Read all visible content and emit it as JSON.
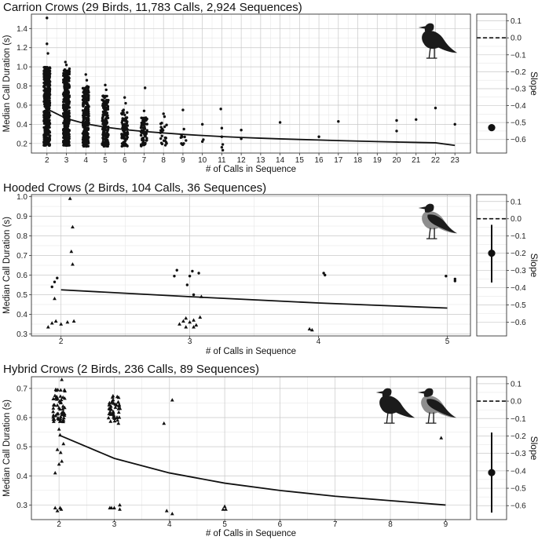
{
  "chart_data": [
    {
      "type": "scatter",
      "title": "Carrion Crows (29 Birds, 11,783 Calls, 2,924 Sequences)",
      "xlabel": "# of Calls in Sequence",
      "ylabel": "Median Call Duration (s)",
      "xlim": [
        1.2,
        23.8
      ],
      "ylim": [
        0.1,
        1.55
      ],
      "xticks": [
        2,
        3,
        4,
        5,
        6,
        7,
        8,
        9,
        10,
        11,
        12,
        13,
        14,
        15,
        16,
        17,
        18,
        19,
        20,
        21,
        22,
        23
      ],
      "yticks": [
        0.2,
        0.4,
        0.6,
        0.8,
        1.0,
        1.2,
        1.4
      ],
      "ytick_labels": [
        "0.2",
        "0.4",
        "0.6",
        "0.8",
        "1.0",
        "1.2",
        "1.4"
      ],
      "series": [
        {
          "marker": "circle",
          "dense_clusters": [
            {
              "x": 2,
              "ymin": 0.18,
              "ymax": 1.0,
              "n": 420
            },
            {
              "x": 3,
              "ymin": 0.18,
              "ymax": 0.98,
              "n": 380
            },
            {
              "x": 4,
              "ymin": 0.17,
              "ymax": 0.8,
              "n": 260
            },
            {
              "x": 5,
              "ymin": 0.17,
              "ymax": 0.7,
              "n": 170
            },
            {
              "x": 6,
              "ymin": 0.17,
              "ymax": 0.55,
              "n": 90
            },
            {
              "x": 7,
              "ymin": 0.17,
              "ymax": 0.48,
              "n": 70
            },
            {
              "x": 8,
              "ymin": 0.18,
              "ymax": 0.42,
              "n": 22
            },
            {
              "x": 9,
              "ymin": 0.18,
              "ymax": 0.32,
              "n": 9
            }
          ],
          "points": [
            [
              2.0,
              1.51
            ],
            [
              2.0,
              1.24
            ],
            [
              2.05,
              1.14
            ],
            [
              2.95,
              1.05
            ],
            [
              3.0,
              1.02
            ],
            [
              4.0,
              0.92
            ],
            [
              4.05,
              0.86
            ],
            [
              5.0,
              0.81
            ],
            [
              5.05,
              0.76
            ],
            [
              6.0,
              0.68
            ],
            [
              6.05,
              0.62
            ],
            [
              7.05,
              0.78
            ],
            [
              7.0,
              0.54
            ],
            [
              8.0,
              0.51
            ],
            [
              8.05,
              0.48
            ],
            [
              9.0,
              0.55
            ],
            [
              9.05,
              0.35
            ],
            [
              10.0,
              0.4
            ],
            [
              10.0,
              0.22
            ],
            [
              10.05,
              0.24
            ],
            [
              10.95,
              0.56
            ],
            [
              11.0,
              0.36
            ],
            [
              11.0,
              0.27
            ],
            [
              11.05,
              0.19
            ],
            [
              11.0,
              0.16
            ],
            [
              11.05,
              0.13
            ],
            [
              12.0,
              0.34
            ],
            [
              12.0,
              0.25
            ],
            [
              14.0,
              0.42
            ],
            [
              16.0,
              0.27
            ],
            [
              17.0,
              0.43
            ],
            [
              20.0,
              0.44
            ],
            [
              20.0,
              0.33
            ],
            [
              21.0,
              0.45
            ],
            [
              22.0,
              0.57
            ],
            [
              23.0,
              0.4
            ]
          ]
        }
      ],
      "trend": {
        "x": [
          2,
          3,
          4,
          5,
          6,
          7,
          8,
          9,
          10,
          11,
          12,
          13,
          14,
          15,
          16,
          17,
          18,
          19,
          20,
          21,
          22,
          23
        ],
        "y": [
          0.56,
          0.46,
          0.405,
          0.37,
          0.345,
          0.325,
          0.31,
          0.295,
          0.283,
          0.272,
          0.263,
          0.255,
          0.248,
          0.242,
          0.236,
          0.23,
          0.225,
          0.22,
          0.215,
          0.211,
          0.207,
          0.18
        ]
      },
      "slope": {
        "label": "Slope",
        "estimate": -0.53,
        "ci": [
          -0.54,
          -0.52
        ],
        "ylim": [
          -0.68,
          0.14
        ],
        "ticks": [
          0.1,
          0.0,
          -0.1,
          -0.2,
          -0.3,
          -0.4,
          -0.5,
          -0.6
        ],
        "tick_labels": [
          "0.1",
          "0.0",
          "−0.1",
          "−0.2",
          "−0.3",
          "−0.4",
          "−0.5",
          "−0.6"
        ],
        "reference": 0.0
      },
      "icons": [
        "carrion-crow-icon"
      ]
    },
    {
      "type": "scatter",
      "title": "Hooded Crows (2 Birds, 104 Calls, 36 Sequences)",
      "xlabel": "# of Calls in Sequence",
      "ylabel": "Median Call Duration (s)",
      "xlim": [
        1.77,
        5.18
      ],
      "ylim": [
        0.29,
        1.01
      ],
      "xticks": [
        2,
        3,
        4,
        5
      ],
      "yticks": [
        0.3,
        0.4,
        0.5,
        0.6,
        0.7,
        0.8,
        0.9,
        1.0
      ],
      "ytick_labels": [
        "0.3",
        "0.4",
        "0.5",
        "0.6",
        "0.7",
        "0.8",
        "0.9",
        "1.0"
      ],
      "series": [
        {
          "marker": "circle",
          "points": [
            [
              1.95,
              0.565
            ],
            [
              1.97,
              0.585
            ],
            [
              1.93,
              0.54
            ],
            [
              2.9,
              0.625
            ],
            [
              2.88,
              0.595
            ],
            [
              3.02,
              0.62
            ],
            [
              3.0,
              0.595
            ],
            [
              3.07,
              0.61
            ],
            [
              2.98,
              0.55
            ],
            [
              3.03,
              0.5
            ],
            [
              4.04,
              0.61
            ],
            [
              4.05,
              0.6
            ],
            [
              4.99,
              0.595
            ],
            [
              5.06,
              0.57
            ],
            [
              5.06,
              0.58
            ]
          ]
        },
        {
          "marker": "triangle",
          "points": [
            [
              2.07,
              0.99
            ],
            [
              2.09,
              0.845
            ],
            [
              2.08,
              0.72
            ],
            [
              2.09,
              0.655
            ],
            [
              1.95,
              0.48
            ],
            [
              1.9,
              0.335
            ],
            [
              1.93,
              0.355
            ],
            [
              1.96,
              0.365
            ],
            [
              2.0,
              0.35
            ],
            [
              2.05,
              0.36
            ],
            [
              2.1,
              0.365
            ],
            [
              2.92,
              0.35
            ],
            [
              2.95,
              0.365
            ],
            [
              2.97,
              0.335
            ],
            [
              3.0,
              0.36
            ],
            [
              3.03,
              0.37
            ],
            [
              2.97,
              0.38
            ],
            [
              3.03,
              0.335
            ],
            [
              3.08,
              0.385
            ],
            [
              3.09,
              0.49
            ],
            [
              3.05,
              0.345
            ],
            [
              3.93,
              0.325
            ],
            [
              3.95,
              0.32
            ]
          ]
        }
      ],
      "trend": {
        "x": [
          2,
          3,
          4,
          5
        ],
        "y": [
          0.525,
          0.49,
          0.458,
          0.432
        ]
      },
      "slope": {
        "label": "Slope",
        "estimate": -0.2,
        "ci": [
          -0.37,
          -0.035
        ],
        "ylim": [
          -0.68,
          0.14
        ],
        "ticks": [
          0.1,
          0.0,
          -0.1,
          -0.2,
          -0.3,
          -0.4,
          -0.5,
          -0.6
        ],
        "tick_labels": [
          "0.1",
          "0.0",
          "−0.1",
          "−0.2",
          "−0.3",
          "−0.4",
          "−0.5",
          "−0.6"
        ],
        "reference": 0.0
      },
      "icons": [
        "hooded-crow-icon"
      ]
    },
    {
      "type": "scatter",
      "title": "Hybrid Crows (2 Birds, 236 Calls, 89 Sequences)",
      "xlabel": "# of Calls in Sequence",
      "ylabel": "Median Call Duration (s)",
      "xlim": [
        1.5,
        9.45
      ],
      "ylim": [
        0.25,
        0.74
      ],
      "xticks": [
        2,
        3,
        4,
        5,
        6,
        7,
        8,
        9
      ],
      "yticks": [
        0.3,
        0.4,
        0.5,
        0.6,
        0.7
      ],
      "ytick_labels": [
        "0.3",
        "0.4",
        "0.5",
        "0.6",
        "0.7"
      ],
      "series": [
        {
          "marker": "triangle",
          "dense_clusters": [
            {
              "x": 2,
              "ymin": 0.585,
              "ymax": 0.7,
              "n": 55
            },
            {
              "x": 3,
              "ymin": 0.58,
              "ymax": 0.68,
              "n": 45
            }
          ],
          "points": [
            [
              2.05,
              0.73
            ],
            [
              2.0,
              0.56
            ],
            [
              2.02,
              0.54
            ],
            [
              2.08,
              0.51
            ],
            [
              1.97,
              0.49
            ],
            [
              2.03,
              0.48
            ],
            [
              2.05,
              0.45
            ],
            [
              2.0,
              0.44
            ],
            [
              1.93,
              0.41
            ],
            [
              1.93,
              0.29
            ],
            [
              1.97,
              0.28
            ],
            [
              2.02,
              0.29
            ],
            [
              2.04,
              0.285
            ],
            [
              2.92,
              0.29
            ],
            [
              2.95,
              0.29
            ],
            [
              3.0,
              0.29
            ],
            [
              3.1,
              0.3
            ],
            [
              3.1,
              0.285
            ],
            [
              3.9,
              0.58
            ],
            [
              4.05,
              0.66
            ],
            [
              3.95,
              0.28
            ],
            [
              4.05,
              0.27
            ],
            [
              4.97,
              0.285
            ],
            [
              5.02,
              0.285
            ],
            [
              5.0,
              0.295
            ],
            [
              8.92,
              0.53
            ]
          ]
        }
      ],
      "trend": {
        "x": [
          2,
          3,
          4,
          5,
          6,
          7,
          8,
          9
        ],
        "y": [
          0.54,
          0.46,
          0.41,
          0.375,
          0.35,
          0.33,
          0.315,
          0.3
        ]
      },
      "slope": {
        "label": "Slope",
        "estimate": -0.41,
        "ci": [
          -0.64,
          -0.18
        ],
        "ylim": [
          -0.68,
          0.14
        ],
        "ticks": [
          0.1,
          0.0,
          -0.1,
          -0.2,
          -0.3,
          -0.4,
          -0.5,
          -0.6
        ],
        "tick_labels": [
          "0.1",
          "0.0",
          "−0.1",
          "−0.2",
          "−0.3",
          "−0.4",
          "−0.5",
          "−0.6"
        ],
        "reference": 0.0
      },
      "icons": [
        "carrion-crow-icon",
        "hooded-crow-icon"
      ]
    }
  ]
}
